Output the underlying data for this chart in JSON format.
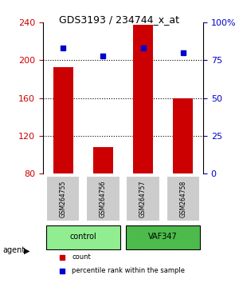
{
  "title": "GDS3193 / 234744_x_at",
  "samples": [
    "GSM264755",
    "GSM264756",
    "GSM264757",
    "GSM264758"
  ],
  "bar_values": [
    193,
    108,
    238,
    160
  ],
  "percentile_values": [
    83,
    78,
    83,
    80
  ],
  "bar_color": "#cc0000",
  "dot_color": "#0000cc",
  "ylim_left": [
    80,
    240
  ],
  "ylim_right": [
    0,
    100
  ],
  "yticks_left": [
    80,
    120,
    160,
    200,
    240
  ],
  "yticks_right": [
    0,
    25,
    50,
    75,
    100
  ],
  "ytick_labels_right": [
    "0",
    "25",
    "50",
    "75",
    "100%"
  ],
  "groups": [
    {
      "label": "control",
      "samples": [
        0,
        1
      ],
      "color": "#90ee90"
    },
    {
      "label": "VAF347",
      "samples": [
        2,
        3
      ],
      "color": "#4cbb4c"
    }
  ],
  "agent_label": "agent",
  "legend_items": [
    {
      "label": "count",
      "color": "#cc0000"
    },
    {
      "label": "percentile rank within the sample",
      "color": "#0000cc"
    }
  ],
  "bar_width": 0.5,
  "sample_box_color": "#cccccc",
  "background_color": "#ffffff"
}
